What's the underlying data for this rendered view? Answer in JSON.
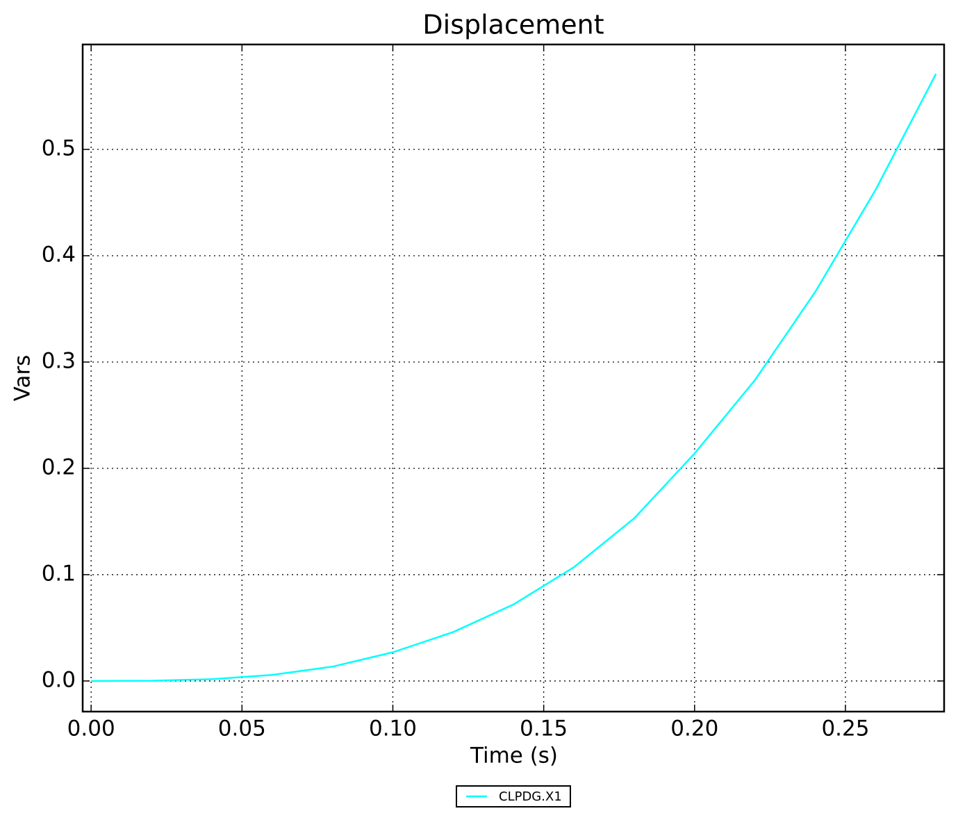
{
  "chart_data": {
    "type": "line",
    "title": "Displacement",
    "x_label": "Time (s)",
    "y_label": "Vars",
    "x": [
      0,
      0.02,
      0.04,
      0.06,
      0.08,
      0.1,
      0.12,
      0.14,
      0.16,
      0.18,
      0.2,
      0.22,
      0.24,
      0.26,
      0.28
    ],
    "series": [
      {
        "name": "CLPDG.X1",
        "color": "#00ffff",
        "values": [
          0,
          0.0002,
          0.0017,
          0.0057,
          0.0135,
          0.027,
          0.046,
          0.072,
          0.107,
          0.153,
          0.214,
          0.283,
          0.366,
          0.462,
          0.571
        ]
      }
    ],
    "xlim": [
      -0.0028,
      0.2827
    ],
    "ylim": [
      -0.0288,
      0.5987
    ],
    "xticks": [
      {
        "value": 0,
        "label": "0.00"
      },
      0.05,
      {
        "value": 0.1,
        "label": "0.10"
      },
      0.15,
      {
        "value": 0.2,
        "label": "0.20"
      },
      0.25
    ],
    "yticks": [
      {
        "value": 0,
        "label": "0.0"
      },
      0.1,
      0.2,
      0.3,
      0.4,
      0.5
    ],
    "grid": true,
    "legend": "below"
  }
}
